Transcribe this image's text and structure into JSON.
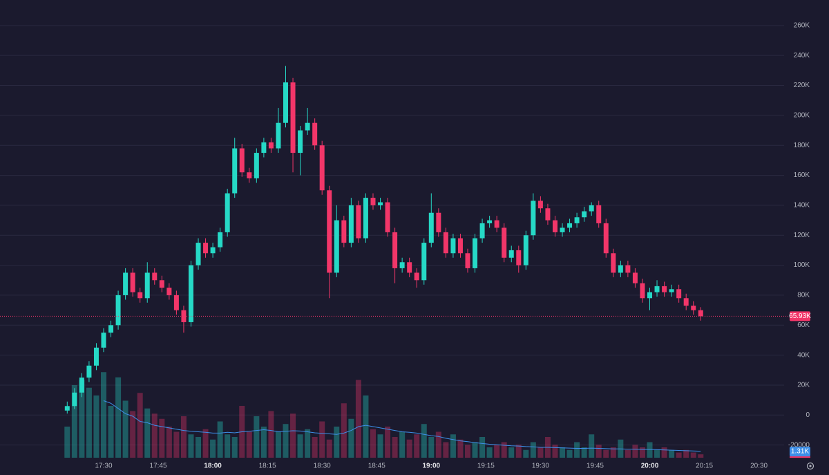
{
  "chart_data": {
    "type": "candlestick",
    "x": [
      "17:20",
      "17:22",
      "17:24",
      "17:26",
      "17:28",
      "17:30",
      "17:32",
      "17:34",
      "17:36",
      "17:38",
      "17:40",
      "17:42",
      "17:44",
      "17:46",
      "17:48",
      "17:50",
      "17:52",
      "17:54",
      "17:56",
      "17:58",
      "18:00",
      "18:02",
      "18:04",
      "18:06",
      "18:08",
      "18:10",
      "18:12",
      "18:14",
      "18:16",
      "18:18",
      "18:20",
      "18:22",
      "18:24",
      "18:26",
      "18:28",
      "18:30",
      "18:32",
      "18:34",
      "18:36",
      "18:38",
      "18:40",
      "18:42",
      "18:44",
      "18:46",
      "18:48",
      "18:50",
      "18:52",
      "18:54",
      "18:56",
      "18:58",
      "19:00",
      "19:02",
      "19:04",
      "19:06",
      "19:08",
      "19:10",
      "19:12",
      "19:14",
      "19:16",
      "19:18",
      "19:20",
      "19:22",
      "19:24",
      "19:26",
      "19:28",
      "19:30",
      "19:32",
      "19:34",
      "19:36",
      "19:38",
      "19:40",
      "19:42",
      "19:44",
      "19:46",
      "19:48",
      "19:50",
      "19:52",
      "19:54",
      "19:56",
      "19:58",
      "20:00",
      "20:02",
      "20:04",
      "20:06",
      "20:08",
      "20:10",
      "20:12",
      "20:14"
    ],
    "open": [
      3000,
      6000,
      15000,
      25000,
      33000,
      45000,
      55000,
      60000,
      80000,
      95000,
      82000,
      78000,
      95000,
      90000,
      85000,
      80000,
      70000,
      62000,
      100000,
      115000,
      108000,
      112000,
      122000,
      148000,
      178000,
      162000,
      158000,
      175000,
      182000,
      178000,
      195000,
      222000,
      175000,
      190000,
      195000,
      180000,
      150000,
      95000,
      130000,
      115000,
      140000,
      118000,
      145000,
      140000,
      142000,
      122000,
      98000,
      102000,
      95000,
      90000,
      115000,
      135000,
      122000,
      108000,
      118000,
      108000,
      98000,
      118000,
      128000,
      130000,
      125000,
      105000,
      110000,
      100000,
      120000,
      143000,
      138000,
      130000,
      122000,
      125000,
      128000,
      132000,
      136000,
      140000,
      128000,
      108000,
      95000,
      100000,
      95000,
      88000,
      78000,
      82000,
      86000,
      82000,
      84000,
      78000,
      73000,
      70000
    ],
    "high": [
      9000,
      18000,
      28000,
      36000,
      48000,
      58000,
      63000,
      83000,
      98000,
      98000,
      85000,
      102000,
      98000,
      93000,
      88000,
      83000,
      73000,
      103000,
      118000,
      118000,
      115000,
      125000,
      151000,
      185000,
      181000,
      165000,
      178000,
      185000,
      185000,
      205000,
      233000,
      225000,
      193000,
      205000,
      198000,
      183000,
      153000,
      140000,
      133000,
      145000,
      143000,
      148000,
      148000,
      145000,
      145000,
      125000,
      105000,
      105000,
      98000,
      118000,
      148000,
      138000,
      125000,
      121000,
      121000,
      111000,
      121000,
      131000,
      133000,
      133000,
      128000,
      113000,
      113000,
      123000,
      148000,
      146000,
      141000,
      133000,
      128000,
      131000,
      135000,
      139000,
      142000,
      143000,
      131000,
      111000,
      103000,
      103000,
      98000,
      91000,
      85000,
      90000,
      89000,
      87000,
      87000,
      81000,
      76000,
      72000
    ],
    "low": [
      1000,
      4000,
      12000,
      22000,
      30000,
      42000,
      52000,
      57000,
      77000,
      79000,
      75000,
      75000,
      87000,
      82000,
      77000,
      67000,
      55000,
      59000,
      97000,
      105000,
      105000,
      109000,
      119000,
      145000,
      159000,
      155000,
      155000,
      172000,
      175000,
      175000,
      192000,
      162000,
      160000,
      187000,
      177000,
      147000,
      78000,
      92000,
      112000,
      112000,
      115000,
      115000,
      137000,
      137000,
      119000,
      88000,
      95000,
      92000,
      85000,
      87000,
      112000,
      119000,
      105000,
      105000,
      105000,
      95000,
      95000,
      115000,
      125000,
      122000,
      102000,
      102000,
      95000,
      97000,
      117000,
      135000,
      127000,
      119000,
      119000,
      122000,
      125000,
      129000,
      133000,
      125000,
      105000,
      92000,
      92000,
      92000,
      85000,
      75000,
      70000,
      79000,
      79000,
      79000,
      75000,
      70000,
      67000,
      63000
    ],
    "close": [
      6000,
      15000,
      25000,
      33000,
      45000,
      55000,
      60000,
      80000,
      95000,
      82000,
      78000,
      95000,
      90000,
      85000,
      80000,
      70000,
      62000,
      100000,
      115000,
      108000,
      112000,
      122000,
      148000,
      178000,
      162000,
      158000,
      175000,
      182000,
      178000,
      195000,
      222000,
      175000,
      190000,
      195000,
      180000,
      150000,
      95000,
      130000,
      115000,
      140000,
      118000,
      145000,
      140000,
      142000,
      122000,
      98000,
      102000,
      95000,
      90000,
      115000,
      135000,
      122000,
      108000,
      118000,
      108000,
      98000,
      118000,
      128000,
      130000,
      125000,
      105000,
      110000,
      100000,
      120000,
      143000,
      138000,
      130000,
      122000,
      125000,
      128000,
      132000,
      136000,
      140000,
      128000,
      108000,
      95000,
      100000,
      95000,
      88000,
      78000,
      82000,
      86000,
      82000,
      84000,
      78000,
      73000,
      70000,
      65930
    ],
    "last_close_label": "65.93K",
    "up_color": "#26d9c6",
    "down_color": "#f23669",
    "ylim": [
      -40000,
      277000
    ],
    "yticks": [
      {
        "value": 260000,
        "label": "260K"
      },
      {
        "value": 240000,
        "label": "240K"
      },
      {
        "value": 220000,
        "label": "220K"
      },
      {
        "value": 200000,
        "label": "200K"
      },
      {
        "value": 180000,
        "label": "180K"
      },
      {
        "value": 160000,
        "label": "160K"
      },
      {
        "value": 140000,
        "label": "140K"
      },
      {
        "value": 120000,
        "label": "120K"
      },
      {
        "value": 100000,
        "label": "100K"
      },
      {
        "value": 80000,
        "label": "80K"
      },
      {
        "value": 60000,
        "label": "60K"
      },
      {
        "value": 40000,
        "label": "40K"
      },
      {
        "value": 20000,
        "label": "20K"
      },
      0,
      -20000
    ],
    "grid": true,
    "xticks": [
      "17:30",
      "17:45",
      "18:00",
      "18:15",
      "18:30",
      "18:45",
      "19:00",
      "19:15",
      "19:30",
      "19:45",
      "20:00",
      "20:15",
      "20:30"
    ],
    "volume": {
      "values": [
        12000,
        28000,
        30000,
        27000,
        24000,
        33000,
        20000,
        31000,
        22000,
        18000,
        25000,
        19000,
        17000,
        15000,
        12000,
        10000,
        16000,
        9000,
        8000,
        11000,
        7000,
        14000,
        9000,
        8000,
        20000,
        10000,
        16000,
        12000,
        18000,
        10000,
        13000,
        17000,
        9000,
        11000,
        8000,
        14000,
        7000,
        12000,
        21000,
        15000,
        30000,
        24000,
        11000,
        9000,
        12000,
        8000,
        10000,
        7000,
        9000,
        13000,
        8000,
        10000,
        6000,
        9000,
        7000,
        5000,
        6000,
        8000,
        4000,
        5000,
        6000,
        4000,
        5000,
        3000,
        6000,
        4000,
        8000,
        5000,
        4000,
        3000,
        6000,
        4000,
        9000,
        5000,
        3000,
        4000,
        7000,
        3000,
        5000,
        4000,
        6000,
        3000,
        4000,
        3000,
        2000,
        3000,
        2000,
        1310
      ],
      "ma": [
        null,
        null,
        null,
        null,
        null,
        22000,
        21000,
        19000,
        17000,
        16000,
        14000,
        13500,
        12500,
        12000,
        11500,
        11000,
        10500,
        10200,
        10000,
        9800,
        9500,
        9500,
        9800,
        9600,
        10000,
        10200,
        10500,
        10800,
        10500,
        10000,
        10200,
        10400,
        10300,
        10000,
        9600,
        9400,
        9200,
        9000,
        9500,
        10500,
        12000,
        12500,
        12000,
        11500,
        11000,
        10500,
        10000,
        9800,
        9500,
        9000,
        8500,
        8200,
        7500,
        7000,
        6500,
        6200,
        5800,
        5500,
        5200,
        5000,
        4800,
        4600,
        4500,
        4300,
        4200,
        4000,
        4000,
        3900,
        3800,
        3700,
        3600,
        3600,
        3700,
        3600,
        3500,
        3400,
        3400,
        3300,
        3300,
        3200,
        3200,
        3100,
        3000,
        2900,
        2800,
        2700,
        2600,
        2500
      ],
      "ma_color": "#3d8fe8",
      "ylim": [
        0,
        40000
      ],
      "last_label": "1.31K"
    }
  }
}
